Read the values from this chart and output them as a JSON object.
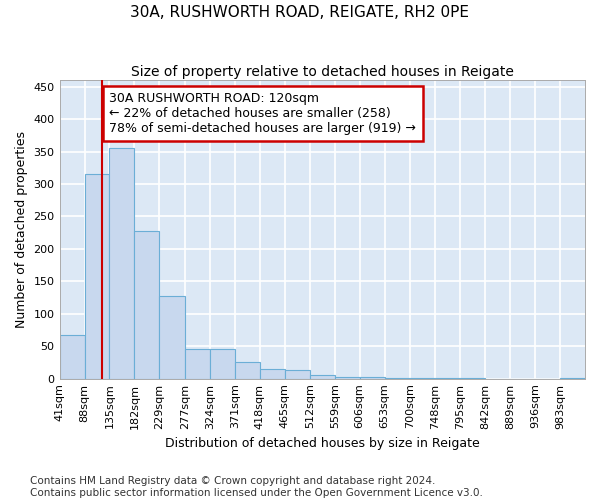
{
  "title": "30A, RUSHWORTH ROAD, REIGATE, RH2 0PE",
  "subtitle": "Size of property relative to detached houses in Reigate",
  "xlabel": "Distribution of detached houses by size in Reigate",
  "ylabel": "Number of detached properties",
  "bin_labels": [
    "41sqm",
    "88sqm",
    "135sqm",
    "182sqm",
    "229sqm",
    "277sqm",
    "324sqm",
    "371sqm",
    "418sqm",
    "465sqm",
    "512sqm",
    "559sqm",
    "606sqm",
    "653sqm",
    "700sqm",
    "748sqm",
    "795sqm",
    "842sqm",
    "889sqm",
    "936sqm",
    "983sqm"
  ],
  "bin_edges": [
    41,
    88,
    135,
    182,
    229,
    277,
    324,
    371,
    418,
    465,
    512,
    559,
    606,
    653,
    700,
    748,
    795,
    842,
    889,
    936,
    983,
    1030
  ],
  "bar_heights": [
    67,
    316,
    355,
    227,
    128,
    45,
    45,
    25,
    15,
    13,
    5,
    3,
    2,
    1,
    1,
    0.5,
    0.3,
    0.2,
    0.1,
    0.1,
    0.5
  ],
  "bar_color": "#c8d8ee",
  "bar_edge_color": "#6baed6",
  "property_size": 120,
  "vline_color": "#cc0000",
  "annotation_line1": "30A RUSHWORTH ROAD: 120sqm",
  "annotation_line2": "← 22% of detached houses are smaller (258)",
  "annotation_line3": "78% of semi-detached houses are larger (919) →",
  "annotation_box_color": "#cc0000",
  "annotation_bg_color": "#ffffff",
  "ylim": [
    0,
    460
  ],
  "yticks": [
    0,
    50,
    100,
    150,
    200,
    250,
    300,
    350,
    400,
    450
  ],
  "bg_color": "#ffffff",
  "plot_bg_color": "#dce8f5",
  "grid_color": "#ffffff",
  "footer_line1": "Contains HM Land Registry data © Crown copyright and database right 2024.",
  "footer_line2": "Contains public sector information licensed under the Open Government Licence v3.0.",
  "title_fontsize": 11,
  "subtitle_fontsize": 10,
  "axis_label_fontsize": 9,
  "tick_fontsize": 8,
  "annotation_fontsize": 9,
  "footer_fontsize": 7.5
}
